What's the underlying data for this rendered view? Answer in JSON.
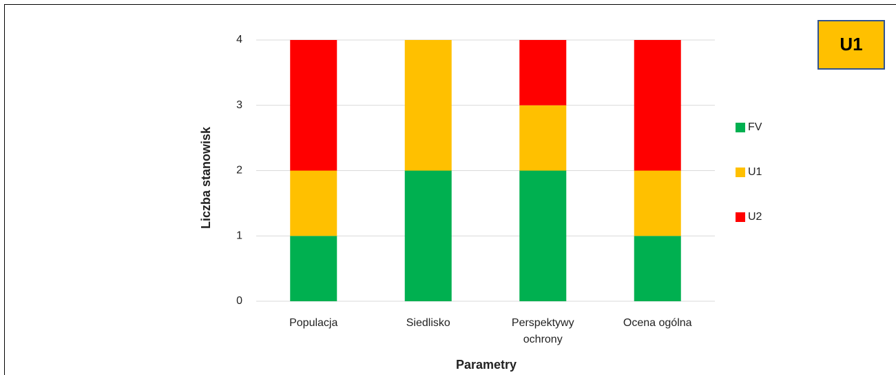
{
  "chart_data": {
    "type": "stacked_bar",
    "categories": [
      "Populacja",
      "Siedlisko",
      "Perspektywy ochrony",
      "Ocena ogólna"
    ],
    "series": [
      {
        "name": "FV",
        "color": "#00b050",
        "values": [
          1,
          2,
          2,
          1
        ]
      },
      {
        "name": "U1",
        "color": "#ffc000",
        "values": [
          1,
          2,
          1,
          1
        ]
      },
      {
        "name": "U2",
        "color": "#ff0000",
        "values": [
          2,
          0,
          1,
          2
        ]
      }
    ],
    "ylim": [
      0,
      4
    ],
    "yticks": [
      0,
      1,
      2,
      3,
      4
    ],
    "grid": true,
    "ylabel": "Liczba stanowisk",
    "xlabel": "Parametry",
    "legend": "right",
    "annotation": "U1"
  }
}
